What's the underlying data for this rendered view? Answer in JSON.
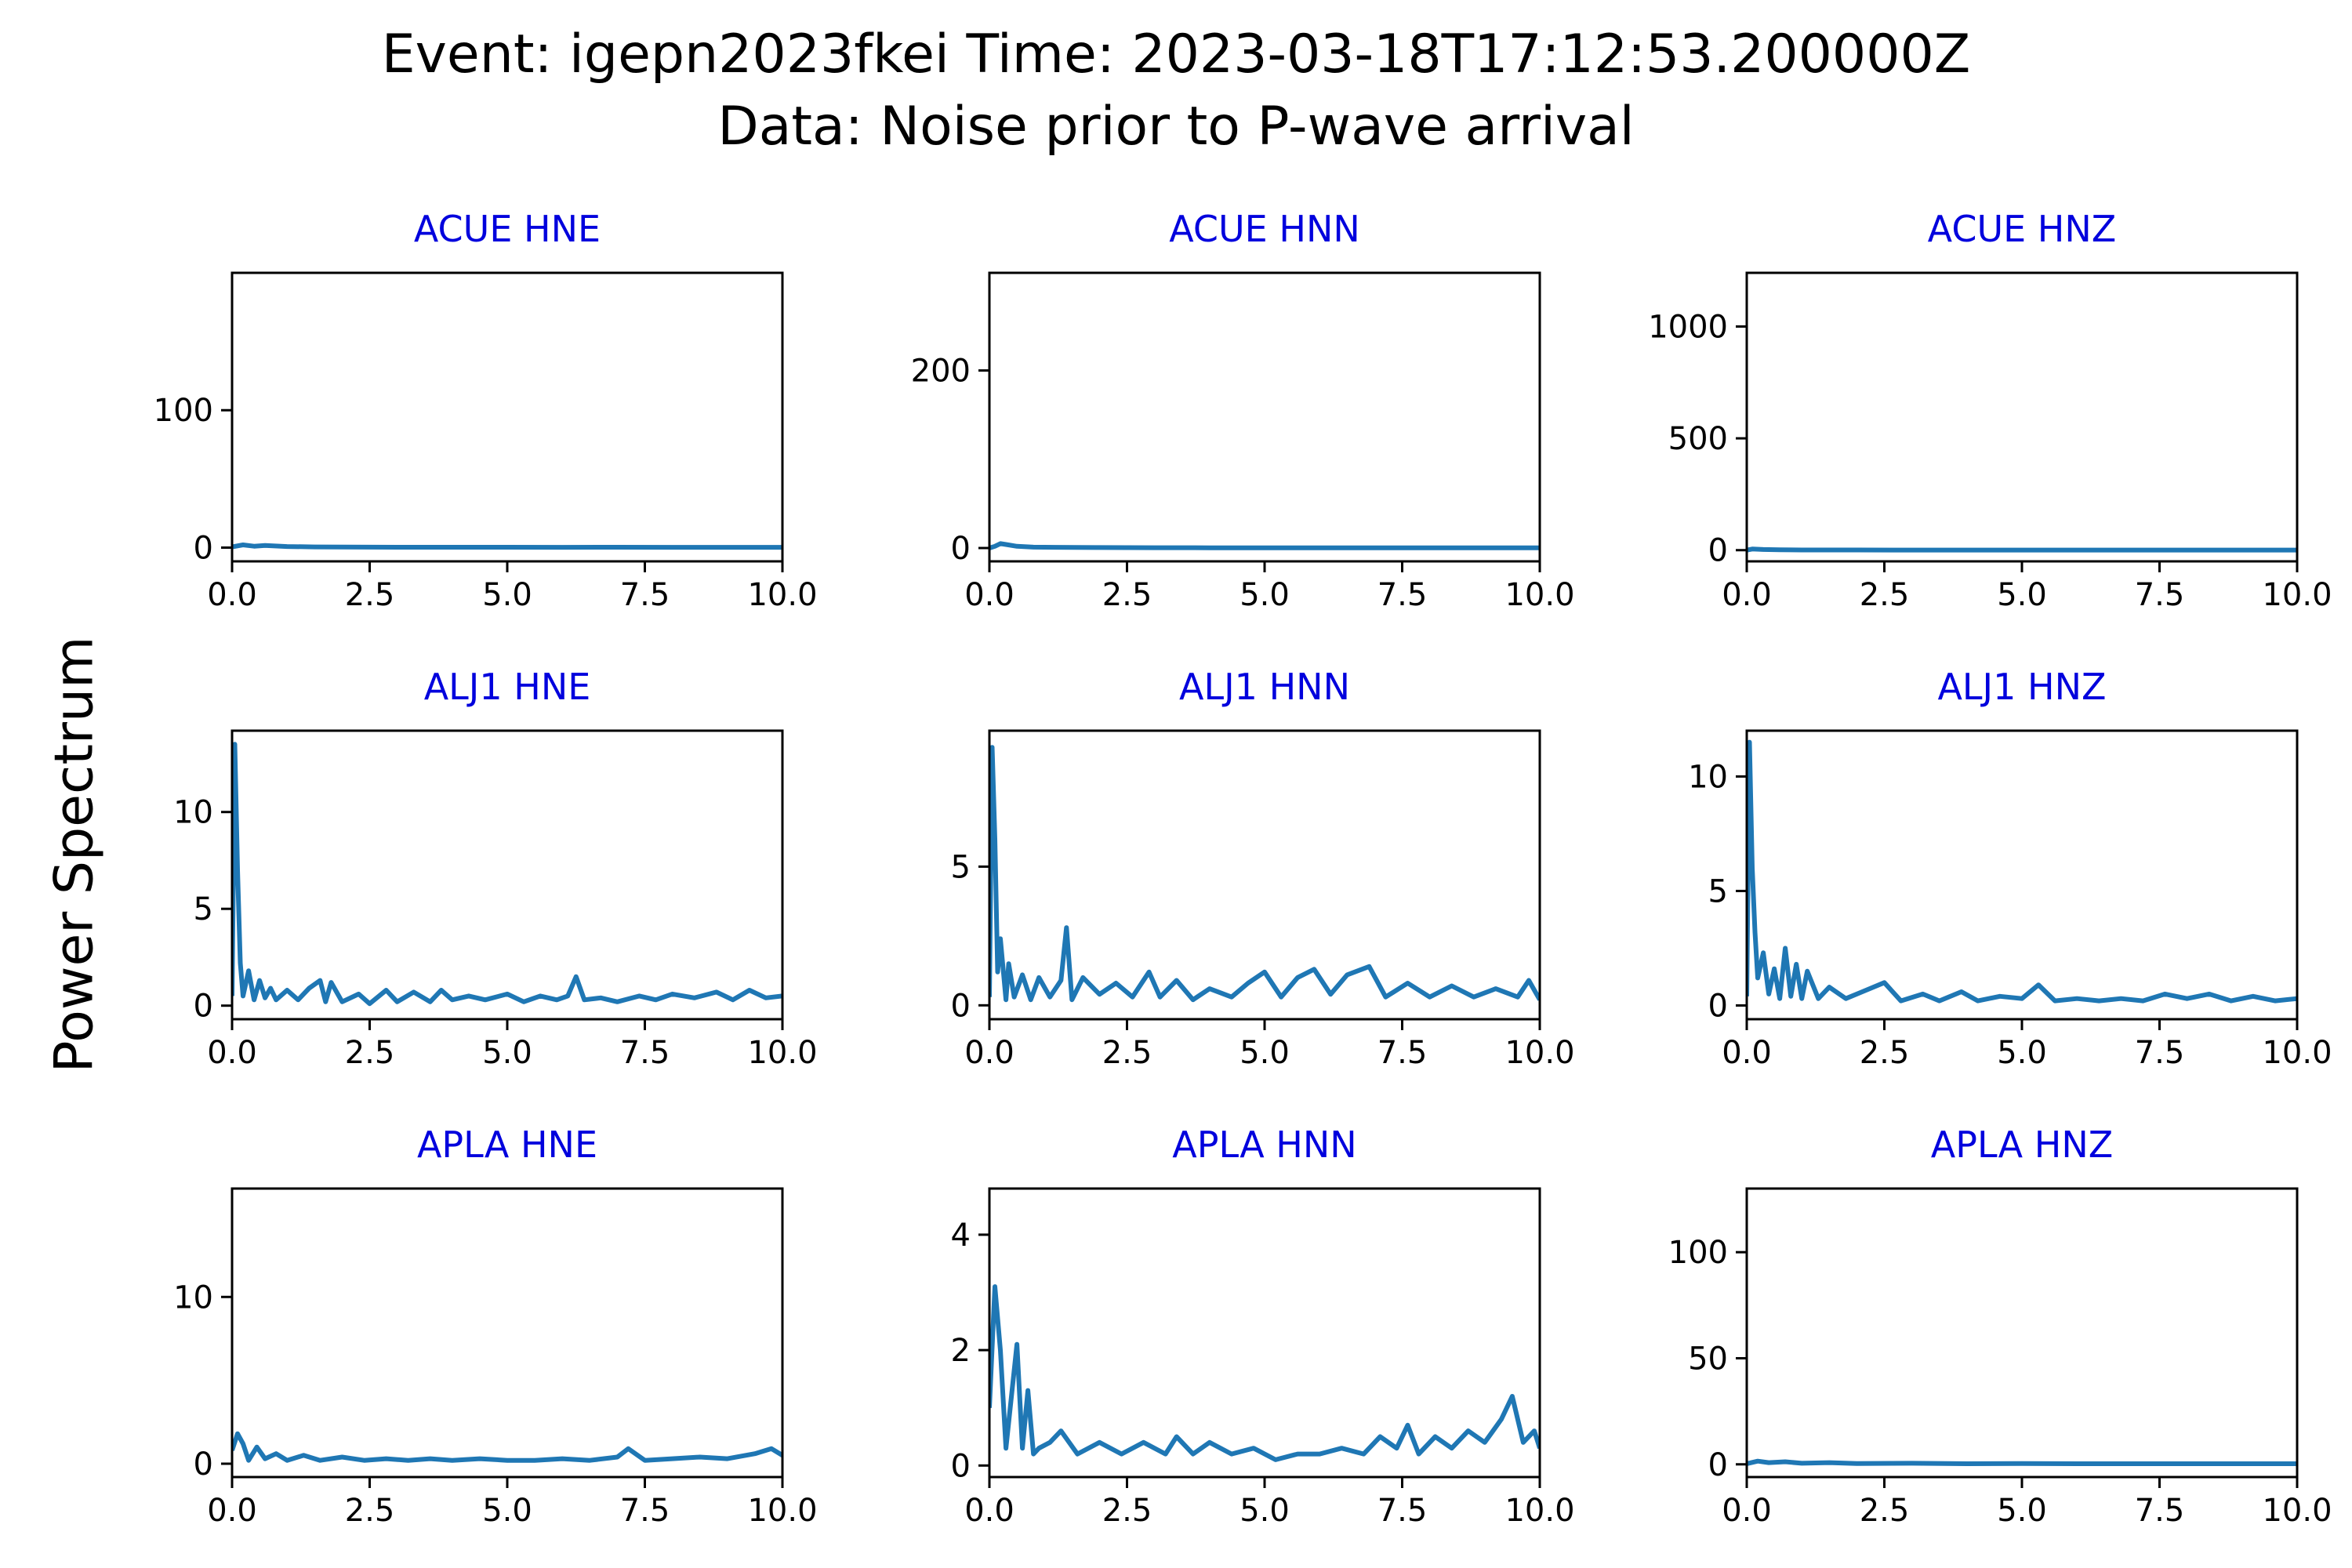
{
  "figure": {
    "title_line1": "Event: igepn2023fkei Time: 2023-03-18T17:12:53.200000Z",
    "title_line2": "Data: Noise prior to P-wave arrival",
    "ylabel": "Power Spectrum",
    "line_color": "#1f77b4",
    "panel_title_color": "#0000dd"
  },
  "chart_data": [
    {
      "type": "line",
      "title": "ACUE HNE",
      "xlim": [
        0,
        10
      ],
      "ylim": [
        -10,
        200
      ],
      "xticks": [
        "0.0",
        "2.5",
        "5.0",
        "7.5",
        "10.0"
      ],
      "yticks": [
        0,
        100
      ],
      "x": [
        0,
        0.2,
        0.4,
        0.6,
        1,
        1.5,
        2,
        3,
        4,
        5,
        6,
        7,
        8,
        9,
        10
      ],
      "values": [
        0.5,
        2,
        1,
        1.5,
        0.8,
        0.5,
        0.4,
        0.3,
        0.3,
        0.3,
        0.2,
        0.3,
        0.2,
        0.2,
        0.2
      ]
    },
    {
      "type": "line",
      "title": "ACUE HNN",
      "xlim": [
        0,
        10
      ],
      "ylim": [
        -15,
        310
      ],
      "xticks": [
        "0.0",
        "2.5",
        "5.0",
        "7.5",
        "10.0"
      ],
      "yticks": [
        0,
        200
      ],
      "x": [
        0,
        0.1,
        0.2,
        0.3,
        0.5,
        0.8,
        1.2,
        2,
        3,
        4,
        5,
        6,
        7,
        8,
        9,
        10
      ],
      "values": [
        0,
        2,
        5,
        4,
        2,
        1,
        0.8,
        0.5,
        0.4,
        0.3,
        0.3,
        0.2,
        0.2,
        0.2,
        0.2,
        0.2
      ]
    },
    {
      "type": "line",
      "title": "ACUE HNZ",
      "xlim": [
        0,
        10
      ],
      "ylim": [
        -50,
        1240
      ],
      "xticks": [
        "0.0",
        "2.5",
        "5.0",
        "7.5",
        "10.0"
      ],
      "yticks": [
        0,
        500,
        1000
      ],
      "x": [
        0,
        0.1,
        0.3,
        0.6,
        1,
        2,
        3,
        4,
        5,
        6,
        7,
        8,
        9,
        10
      ],
      "values": [
        0,
        5,
        3,
        2,
        1,
        1,
        0.5,
        0.5,
        0.5,
        0.5,
        0.5,
        0.5,
        0.5,
        0.5
      ]
    },
    {
      "type": "line",
      "title": "ALJ1 HNE",
      "xlim": [
        0,
        10
      ],
      "ylim": [
        -0.7,
        14.2
      ],
      "xticks": [
        "0.0",
        "2.5",
        "5.0",
        "7.5",
        "10.0"
      ],
      "yticks": [
        0,
        5,
        10
      ],
      "x": [
        0,
        0.05,
        0.1,
        0.15,
        0.2,
        0.3,
        0.4,
        0.5,
        0.6,
        0.7,
        0.8,
        1.0,
        1.2,
        1.4,
        1.6,
        1.7,
        1.8,
        2.0,
        2.3,
        2.5,
        2.8,
        3.0,
        3.3,
        3.6,
        3.8,
        4.0,
        4.3,
        4.6,
        5.0,
        5.3,
        5.6,
        5.9,
        6.1,
        6.25,
        6.4,
        6.7,
        7.0,
        7.4,
        7.7,
        8.0,
        8.4,
        8.8,
        9.1,
        9.4,
        9.7,
        10.0
      ],
      "values": [
        0.5,
        13.5,
        7,
        2.2,
        0.5,
        1.8,
        0.3,
        1.3,
        0.4,
        0.9,
        0.3,
        0.8,
        0.3,
        0.9,
        1.3,
        0.2,
        1.2,
        0.2,
        0.6,
        0.1,
        0.8,
        0.2,
        0.7,
        0.2,
        0.8,
        0.3,
        0.5,
        0.3,
        0.6,
        0.2,
        0.5,
        0.3,
        0.5,
        1.5,
        0.3,
        0.4,
        0.2,
        0.5,
        0.3,
        0.6,
        0.4,
        0.7,
        0.3,
        0.8,
        0.4,
        0.5
      ]
    },
    {
      "type": "line",
      "title": "ALJ1 HNN",
      "xlim": [
        0,
        10
      ],
      "ylim": [
        -0.5,
        9.9
      ],
      "xticks": [
        "0.0",
        "2.5",
        "5.0",
        "7.5",
        "10.0"
      ],
      "yticks": [
        0,
        5
      ],
      "x": [
        0,
        0.05,
        0.1,
        0.15,
        0.2,
        0.3,
        0.35,
        0.45,
        0.6,
        0.75,
        0.9,
        1.1,
        1.3,
        1.4,
        1.5,
        1.7,
        2.0,
        2.3,
        2.6,
        2.9,
        3.1,
        3.4,
        3.7,
        4.0,
        4.4,
        4.7,
        5.0,
        5.3,
        5.6,
        5.9,
        6.2,
        6.5,
        6.9,
        7.2,
        7.6,
        8.0,
        8.4,
        8.8,
        9.2,
        9.6,
        9.8,
        10.0
      ],
      "values": [
        0.3,
        9.3,
        6,
        1.2,
        2.4,
        0.2,
        1.5,
        0.3,
        1.1,
        0.2,
        1.0,
        0.3,
        0.9,
        2.8,
        0.2,
        1.0,
        0.4,
        0.8,
        0.3,
        1.2,
        0.3,
        0.9,
        0.2,
        0.6,
        0.3,
        0.8,
        1.2,
        0.3,
        1.0,
        1.3,
        0.4,
        1.1,
        1.4,
        0.3,
        0.8,
        0.3,
        0.7,
        0.3,
        0.6,
        0.3,
        0.9,
        0.2
      ]
    },
    {
      "type": "line",
      "title": "ALJ1 HNZ",
      "xlim": [
        0,
        10
      ],
      "ylim": [
        -0.6,
        12.0
      ],
      "xticks": [
        "0.0",
        "2.5",
        "5.0",
        "7.5",
        "10.0"
      ],
      "yticks": [
        0,
        5,
        10
      ],
      "x": [
        0,
        0.05,
        0.1,
        0.15,
        0.2,
        0.3,
        0.4,
        0.5,
        0.6,
        0.7,
        0.8,
        0.9,
        1.0,
        1.1,
        1.3,
        1.5,
        1.8,
        2.1,
        2.5,
        2.8,
        3.2,
        3.5,
        3.9,
        4.2,
        4.6,
        5.0,
        5.3,
        5.6,
        6.0,
        6.4,
        6.8,
        7.2,
        7.6,
        8.0,
        8.4,
        8.8,
        9.2,
        9.6,
        10.0
      ],
      "values": [
        0.4,
        11.5,
        6,
        3.2,
        1.2,
        2.3,
        0.5,
        1.6,
        0.3,
        2.5,
        0.4,
        1.8,
        0.3,
        1.5,
        0.3,
        0.8,
        0.3,
        0.6,
        1.0,
        0.2,
        0.5,
        0.2,
        0.6,
        0.2,
        0.4,
        0.3,
        0.9,
        0.2,
        0.3,
        0.2,
        0.3,
        0.2,
        0.5,
        0.3,
        0.5,
        0.2,
        0.4,
        0.2,
        0.3
      ]
    },
    {
      "type": "line",
      "title": "APLA HNE",
      "xlim": [
        0,
        10
      ],
      "ylim": [
        -0.8,
        16.5
      ],
      "xticks": [
        "0.0",
        "2.5",
        "5.0",
        "7.5",
        "10.0"
      ],
      "yticks": [
        0,
        10
      ],
      "x": [
        0,
        0.1,
        0.2,
        0.3,
        0.45,
        0.6,
        0.8,
        1.0,
        1.3,
        1.6,
        2.0,
        2.4,
        2.8,
        3.2,
        3.6,
        4.0,
        4.5,
        5.0,
        5.5,
        6.0,
        6.5,
        7.0,
        7.2,
        7.5,
        8.0,
        8.5,
        9.0,
        9.5,
        9.8,
        10.0
      ],
      "values": [
        0.8,
        1.8,
        1.2,
        0.2,
        1.0,
        0.3,
        0.6,
        0.2,
        0.5,
        0.2,
        0.4,
        0.2,
        0.3,
        0.2,
        0.3,
        0.2,
        0.3,
        0.2,
        0.2,
        0.3,
        0.2,
        0.4,
        0.9,
        0.2,
        0.3,
        0.4,
        0.3,
        0.6,
        0.9,
        0.5
      ]
    },
    {
      "type": "line",
      "title": "APLA HNN",
      "xlim": [
        0,
        10
      ],
      "ylim": [
        -0.2,
        4.8
      ],
      "xticks": [
        "0.0",
        "2.5",
        "5.0",
        "7.5",
        "10.0"
      ],
      "yticks": [
        0,
        2,
        4
      ],
      "x": [
        0,
        0.1,
        0.2,
        0.3,
        0.4,
        0.5,
        0.6,
        0.7,
        0.8,
        0.9,
        1.1,
        1.3,
        1.6,
        2.0,
        2.4,
        2.8,
        3.2,
        3.4,
        3.7,
        4.0,
        4.4,
        4.8,
        5.2,
        5.6,
        6.0,
        6.4,
        6.8,
        7.1,
        7.4,
        7.6,
        7.8,
        8.1,
        8.4,
        8.7,
        9.0,
        9.3,
        9.5,
        9.7,
        9.9,
        10.0
      ],
      "values": [
        1.0,
        3.1,
        2.0,
        0.3,
        1.2,
        2.1,
        0.3,
        1.3,
        0.2,
        0.3,
        0.4,
        0.6,
        0.2,
        0.4,
        0.2,
        0.4,
        0.2,
        0.5,
        0.2,
        0.4,
        0.2,
        0.3,
        0.1,
        0.2,
        0.2,
        0.3,
        0.2,
        0.5,
        0.3,
        0.7,
        0.2,
        0.5,
        0.3,
        0.6,
        0.4,
        0.8,
        1.2,
        0.4,
        0.6,
        0.3
      ]
    },
    {
      "type": "line",
      "title": "APLA HNZ",
      "xlim": [
        0,
        10
      ],
      "ylim": [
        -6,
        130
      ],
      "xticks": [
        "0.0",
        "2.5",
        "5.0",
        "7.5",
        "10.0"
      ],
      "yticks": [
        0,
        50,
        100
      ],
      "x": [
        0,
        0.2,
        0.4,
        0.7,
        1.0,
        1.5,
        2.0,
        3.0,
        4.0,
        5.0,
        6.0,
        7.0,
        8.0,
        9.0,
        10.0
      ],
      "values": [
        0.3,
        1.5,
        0.8,
        1.2,
        0.5,
        0.8,
        0.4,
        0.5,
        0.3,
        0.4,
        0.3,
        0.3,
        0.3,
        0.3,
        0.3
      ]
    }
  ]
}
